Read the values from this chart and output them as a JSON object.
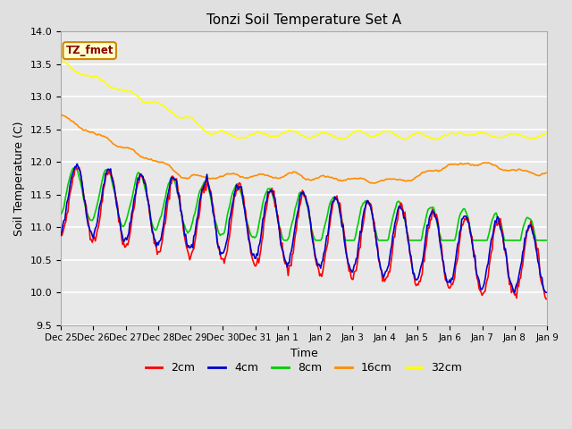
{
  "title": "Tonzi Soil Temperature Set A",
  "xlabel": "Time",
  "ylabel": "Soil Temperature (C)",
  "ylim": [
    9.5,
    14.0
  ],
  "annotation": "TZ_fmet",
  "annotation_color": "#8B0000",
  "annotation_bg": "#FFFFCC",
  "annotation_border": "#CC8800",
  "bg_color": "#E0E0E0",
  "plot_bg_color": "#E8E8E8",
  "grid_color": "#FFFFFF",
  "line_colors": {
    "2cm": "#FF0000",
    "4cm": "#0000CC",
    "8cm": "#00CC00",
    "16cm": "#FF8C00",
    "32cm": "#FFFF00"
  },
  "line_width": 1.2,
  "tick_labels": [
    "Dec 25",
    "Dec 26",
    "Dec 27",
    "Dec 28",
    "Dec 29",
    "Dec 30",
    "Dec 31",
    "Jan 1",
    "Jan 2",
    "Jan 3",
    "Jan 4",
    "Jan 5",
    "Jan 6",
    "Jan 7",
    "Jan 8",
    "Jan 9"
  ],
  "n_points": 480
}
